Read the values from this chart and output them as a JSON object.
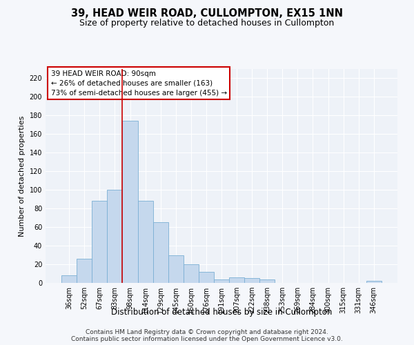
{
  "title": "39, HEAD WEIR ROAD, CULLOMPTON, EX15 1NN",
  "subtitle": "Size of property relative to detached houses in Cullompton",
  "xlabel": "Distribution of detached houses by size in Cullompton",
  "ylabel": "Number of detached properties",
  "categories": [
    "36sqm",
    "52sqm",
    "67sqm",
    "83sqm",
    "98sqm",
    "114sqm",
    "129sqm",
    "145sqm",
    "160sqm",
    "176sqm",
    "191sqm",
    "207sqm",
    "222sqm",
    "238sqm",
    "253sqm",
    "269sqm",
    "284sqm",
    "300sqm",
    "315sqm",
    "331sqm",
    "346sqm"
  ],
  "values": [
    8,
    26,
    88,
    100,
    174,
    88,
    65,
    30,
    20,
    12,
    4,
    6,
    5,
    4,
    0,
    0,
    0,
    0,
    0,
    0,
    2
  ],
  "bar_color": "#c5d8ed",
  "bar_edge_color": "#7aafd4",
  "vline_color": "#cc0000",
  "annotation_text_line1": "39 HEAD WEIR ROAD: 90sqm",
  "annotation_text_line2": "← 26% of detached houses are smaller (163)",
  "annotation_text_line3": "73% of semi-detached houses are larger (455) →",
  "annotation_box_color": "#cc0000",
  "ylim": [
    0,
    230
  ],
  "yticks": [
    0,
    20,
    40,
    60,
    80,
    100,
    120,
    140,
    160,
    180,
    200,
    220
  ],
  "footnote1": "Contains HM Land Registry data © Crown copyright and database right 2024.",
  "footnote2": "Contains public sector information licensed under the Open Government Licence v3.0.",
  "bg_color": "#eef2f8",
  "grid_color": "#ffffff",
  "title_fontsize": 10.5,
  "subtitle_fontsize": 9,
  "ylabel_fontsize": 8,
  "xlabel_fontsize": 8.5,
  "tick_fontsize": 7,
  "annotation_fontsize": 7.5,
  "footnote_fontsize": 6.5,
  "fig_bg_color": "#f5f7fb"
}
